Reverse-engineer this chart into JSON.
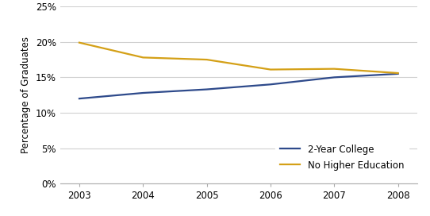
{
  "years": [
    2003,
    2004,
    2005,
    2006,
    2007,
    2008
  ],
  "two_year_college": [
    0.12,
    0.128,
    0.133,
    0.14,
    0.15,
    0.155
  ],
  "no_higher_education": [
    0.199,
    0.178,
    0.175,
    0.161,
    0.162,
    0.156
  ],
  "line_color_blue": "#2E4A8B",
  "line_color_gold": "#D4A017",
  "ylabel": "Percentage of Graduates",
  "legend_label_blue": "2-Year College",
  "legend_label_gold": "No Higher Education",
  "ylim": [
    0.0,
    0.25
  ],
  "yticks": [
    0.0,
    0.05,
    0.1,
    0.15,
    0.2,
    0.25
  ],
  "xticks": [
    2003,
    2004,
    2005,
    2006,
    2007,
    2008
  ],
  "background_color": "#ffffff",
  "grid_color": "#d0d0d0",
  "line_width": 1.6,
  "figsize": [
    5.42,
    2.72
  ],
  "dpi": 100
}
